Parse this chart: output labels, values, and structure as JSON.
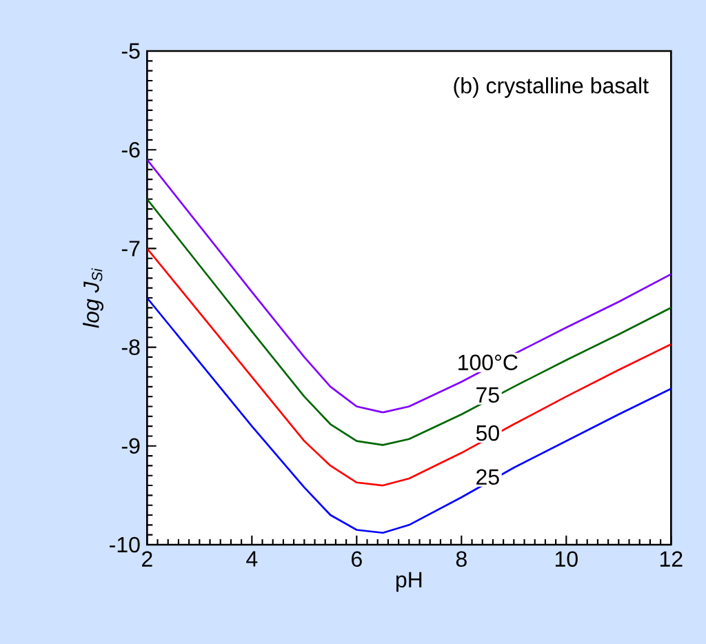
{
  "chart_data": {
    "type": "line",
    "xlabel": "pH",
    "ylabel": "log J$_{Si}$",
    "annotations": [
      "(b) crystalline basalt"
    ],
    "x": [
      2,
      3,
      4,
      5,
      5.5,
      6,
      6.5,
      7,
      8,
      9,
      10,
      11,
      12
    ],
    "xlim": [
      2,
      12
    ],
    "ylim": [
      -10,
      -5
    ],
    "xticks": [
      2,
      4,
      6,
      8,
      10,
      12
    ],
    "yticks": [
      -10,
      -9,
      -8,
      -7,
      -6,
      -5
    ],
    "grid": false,
    "legend": false,
    "marker": "none",
    "line_style": "solid",
    "series": [
      {
        "name": "100°C",
        "color": "#8000ff",
        "values": [
          -6.1,
          -6.77,
          -7.44,
          -8.1,
          -8.4,
          -8.6,
          -8.66,
          -8.6,
          -8.35,
          -8.07,
          -7.8,
          -7.54,
          -7.26
        ]
      },
      {
        "name": "75",
        "color": "#006600",
        "values": [
          -6.5,
          -7.17,
          -7.84,
          -8.5,
          -8.78,
          -8.95,
          -8.99,
          -8.93,
          -8.68,
          -8.4,
          -8.13,
          -7.87,
          -7.6
        ]
      },
      {
        "name": "50",
        "color": "#ff0000",
        "values": [
          -7.0,
          -7.65,
          -8.3,
          -8.95,
          -9.2,
          -9.37,
          -9.4,
          -9.33,
          -9.07,
          -8.78,
          -8.5,
          -8.23,
          -7.97
        ]
      },
      {
        "name": "25",
        "color": "#0000ff",
        "values": [
          -7.5,
          -8.15,
          -8.8,
          -9.42,
          -9.7,
          -9.85,
          -9.88,
          -9.8,
          -9.52,
          -9.22,
          -8.95,
          -8.68,
          -8.42
        ]
      }
    ]
  }
}
